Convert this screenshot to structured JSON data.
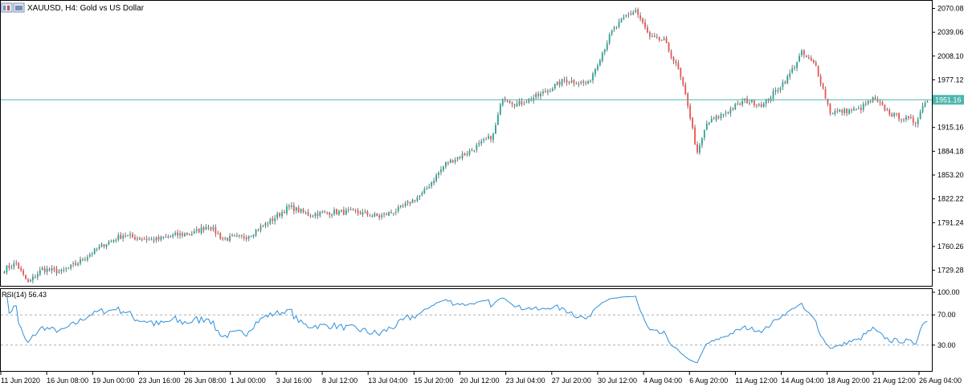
{
  "header": {
    "symbol_line": "XAUUSD, H4:  Gold vs US Dollar",
    "chart_icon": "chart-window-icon"
  },
  "colors": {
    "bull": "#26a69a",
    "bear": "#ef5350",
    "wick": "#555555",
    "price_line": "#4db6ac",
    "rsi_line": "#2f8fd8",
    "axis": "#000000",
    "level_line": "#b0b0b0"
  },
  "chart_data": [
    {
      "type": "candlestick",
      "name": "XAUUSD H4",
      "y_ticks": [
        2070.08,
        2039.06,
        2008.1,
        1977.12,
        1915.16,
        1884.18,
        1853.2,
        1822.22,
        1791.24,
        1760.26,
        1729.28
      ],
      "y_tick_labels": [
        "2070.08",
        "2039.06",
        "2008.10",
        "1977.12",
        "1915.16",
        "1884.18",
        "1853.20",
        "1822.22",
        "1791.24",
        "1760.26",
        "1729.28"
      ],
      "ylim": [
        1709,
        2080
      ],
      "current_price": 1951.16,
      "current_price_label": "1951.16",
      "x_labels": [
        "11 Jun 2020",
        "16 Jun 08:00",
        "19 Jun 00:00",
        "23 Jun 16:00",
        "26 Jun 08:00",
        "1 Jul 00:00",
        "3 Jul 16:00",
        "8 Jul 12:00",
        "13 Jul 04:00",
        "15 Jul 20:00",
        "20 Jul 12:00",
        "23 Jul 04:00",
        "27 Jul 20:00",
        "30 Jul 12:00",
        "4 Aug 04:00",
        "6 Aug 20:00",
        "11 Aug 12:00",
        "14 Aug 04:00",
        "18 Aug 20:00",
        "21 Aug 12:00",
        "26 Aug 04:00"
      ],
      "close_anchors": [
        [
          0,
          1731
        ],
        [
          5,
          1738
        ],
        [
          8,
          1722
        ],
        [
          10,
          1713
        ],
        [
          16,
          1731
        ],
        [
          24,
          1727
        ],
        [
          30,
          1737
        ],
        [
          36,
          1750
        ],
        [
          42,
          1763
        ],
        [
          50,
          1775
        ],
        [
          56,
          1771
        ],
        [
          64,
          1769
        ],
        [
          72,
          1775
        ],
        [
          80,
          1778
        ],
        [
          86,
          1788
        ],
        [
          92,
          1770
        ],
        [
          102,
          1773
        ],
        [
          112,
          1793
        ],
        [
          120,
          1812
        ],
        [
          128,
          1802
        ],
        [
          138,
          1805
        ],
        [
          148,
          1805
        ],
        [
          158,
          1799
        ],
        [
          166,
          1808
        ],
        [
          176,
          1828
        ],
        [
          186,
          1868
        ],
        [
          196,
          1884
        ],
        [
          206,
          1905
        ],
        [
          210,
          1955
        ],
        [
          216,
          1945
        ],
        [
          226,
          1958
        ],
        [
          236,
          1977
        ],
        [
          246,
          1972
        ],
        [
          256,
          2040
        ],
        [
          262,
          2060
        ],
        [
          266,
          2068
        ],
        [
          272,
          2032
        ],
        [
          278,
          2028
        ],
        [
          284,
          1990
        ],
        [
          288,
          1945
        ],
        [
          292,
          1880
        ],
        [
          296,
          1920
        ],
        [
          304,
          1935
        ],
        [
          312,
          1950
        ],
        [
          320,
          1945
        ],
        [
          330,
          1980
        ],
        [
          336,
          2012
        ],
        [
          342,
          1995
        ],
        [
          348,
          1935
        ],
        [
          360,
          1938
        ],
        [
          366,
          1952
        ],
        [
          374,
          1932
        ],
        [
          384,
          1922
        ],
        [
          388,
          1950
        ]
      ],
      "n_candles": 390
    },
    {
      "type": "line",
      "name": "RSI(14)",
      "label": "RSI(14) 56.43",
      "value": 56.43,
      "y_ticks": [
        100,
        70,
        30
      ],
      "y_tick_labels": [
        "100.00",
        "70.00",
        "30.00"
      ],
      "ylim": [
        0,
        100
      ],
      "levels": [
        70,
        30
      ]
    }
  ]
}
